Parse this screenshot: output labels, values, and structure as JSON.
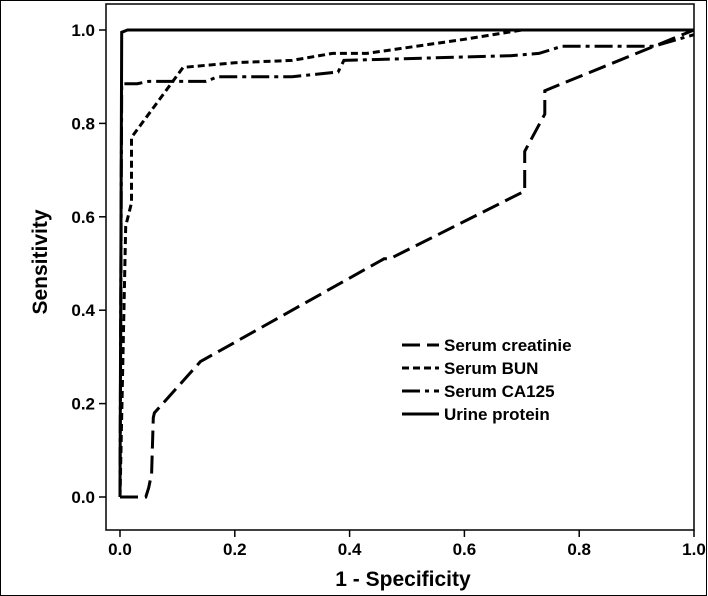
{
  "chart_data": {
    "type": "line",
    "title": "",
    "xlabel": "1 - Specificity",
    "ylabel": "Sensitivity",
    "xlim": [
      0,
      1
    ],
    "ylim": [
      0,
      1
    ],
    "x_ticks": [
      "0.0",
      "0.2",
      "0.4",
      "0.6",
      "0.8",
      "1.0"
    ],
    "y_ticks": [
      "0.0",
      "0.2",
      "0.4",
      "0.6",
      "0.8",
      "1.0"
    ],
    "grid": false,
    "legend_position": "lower-right",
    "series": [
      {
        "name": "Serum creatinie",
        "dash": "long-dash",
        "points": [
          [
            0,
            0
          ],
          [
            0.045,
            0
          ],
          [
            0.05,
            0.02
          ],
          [
            0.055,
            0.05
          ],
          [
            0.058,
            0.17
          ],
          [
            0.06,
            0.18
          ],
          [
            0.14,
            0.29
          ],
          [
            0.46,
            0.51
          ],
          [
            0.47,
            0.51
          ],
          [
            0.705,
            0.655
          ],
          [
            0.705,
            0.74
          ],
          [
            0.74,
            0.82
          ],
          [
            0.74,
            0.87
          ],
          [
            1,
            1
          ]
        ]
      },
      {
        "name": "Serum BUN",
        "dash": "short-dash",
        "points": [
          [
            0,
            0
          ],
          [
            0.01,
            0.58
          ],
          [
            0.02,
            0.63
          ],
          [
            0.02,
            0.77
          ],
          [
            0.11,
            0.92
          ],
          [
            0.2,
            0.93
          ],
          [
            0.3,
            0.935
          ],
          [
            0.37,
            0.95
          ],
          [
            0.43,
            0.95
          ],
          [
            0.6,
            0.98
          ],
          [
            0.7,
            1
          ],
          [
            1,
            1
          ]
        ]
      },
      {
        "name": "Serum CA125",
        "dash": "dash-dot",
        "points": [
          [
            0,
            0
          ],
          [
            0.003,
            0.885
          ],
          [
            0.03,
            0.885
          ],
          [
            0.05,
            0.89
          ],
          [
            0.15,
            0.89
          ],
          [
            0.17,
            0.9
          ],
          [
            0.3,
            0.9
          ],
          [
            0.38,
            0.91
          ],
          [
            0.39,
            0.935
          ],
          [
            0.68,
            0.945
          ],
          [
            0.73,
            0.95
          ],
          [
            0.77,
            0.965
          ],
          [
            0.93,
            0.965
          ],
          [
            1,
            0.99
          ]
        ]
      },
      {
        "name": "Urine protein",
        "dash": "solid",
        "points": [
          [
            0,
            0
          ],
          [
            0.003,
            0.995
          ],
          [
            0.013,
            1
          ],
          [
            1,
            1
          ]
        ]
      }
    ]
  }
}
